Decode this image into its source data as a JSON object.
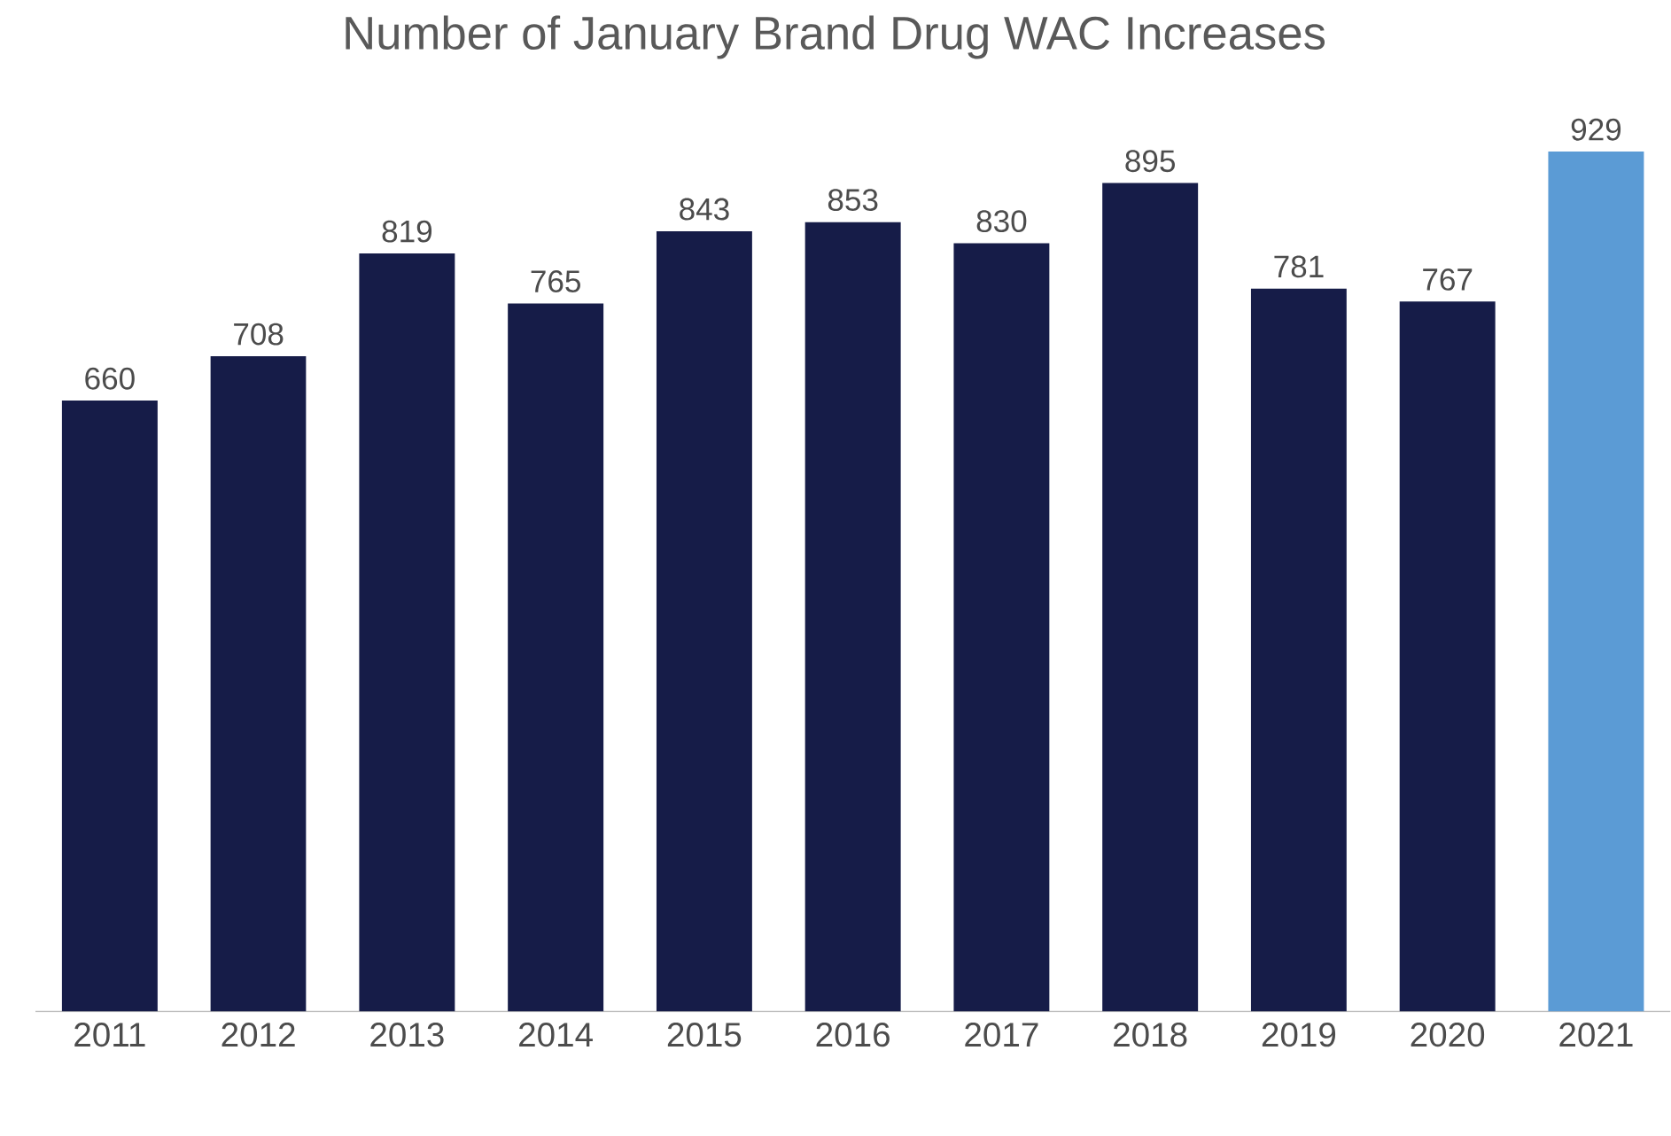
{
  "chart_data": {
    "type": "bar",
    "title": "Number of January Brand Drug WAC Increases",
    "categories": [
      "2011",
      "2012",
      "2013",
      "2014",
      "2015",
      "2016",
      "2017",
      "2018",
      "2019",
      "2020",
      "2021"
    ],
    "values": [
      660,
      708,
      819,
      765,
      843,
      853,
      830,
      895,
      781,
      767,
      929
    ],
    "colors": [
      "#161c48",
      "#161c48",
      "#161c48",
      "#161c48",
      "#161c48",
      "#161c48",
      "#161c48",
      "#161c48",
      "#161c48",
      "#161c48",
      "#5b9bd5"
    ],
    "data_labels": true
  }
}
